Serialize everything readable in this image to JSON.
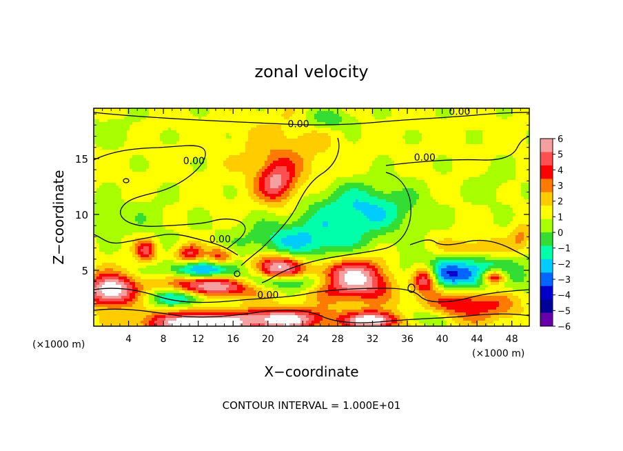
{
  "chart_data": {
    "type": "heatmap",
    "title": "zonal velocity",
    "xlabel": "X−coordinate",
    "ylabel": "Z−coordinate",
    "x_unit_left": "(×1000 m)",
    "x_unit_right": "(×1000 m)",
    "xlim": [
      0,
      50
    ],
    "ylim": [
      0,
      19.5
    ],
    "x_ticks": [
      4,
      8,
      12,
      16,
      20,
      24,
      28,
      32,
      36,
      40,
      44,
      48
    ],
    "y_ticks": [
      5,
      10,
      15
    ],
    "footer": "CONTOUR INTERVAL = 1.000E+01",
    "contour_labels": [
      {
        "text": "0.00",
        "x": 23.5,
        "y": 17.8
      },
      {
        "text": "0.00",
        "x": 42,
        "y": 18.9
      },
      {
        "text": "0.00",
        "x": 11.5,
        "y": 14.5
      },
      {
        "text": "0.00",
        "x": 38,
        "y": 14.8
      },
      {
        "text": "0.00",
        "x": 14.5,
        "y": 7.5
      },
      {
        "text": "0.00",
        "x": 20,
        "y": 2.5
      }
    ],
    "colorbar": {
      "levels": [
        6,
        5,
        4,
        3,
        2,
        1,
        0,
        -1,
        -2,
        -3,
        -4,
        -5,
        -6
      ],
      "labels": [
        "6",
        "5",
        "4",
        "3",
        "2",
        "1",
        "0",
        "−1",
        "−2",
        "−3",
        "−4",
        "−5",
        "−6"
      ],
      "colors": [
        "#f4a0a0",
        "#ff5050",
        "#ff0000",
        "#ff7a00",
        "#ffcc00",
        "#ffff00",
        "#a8ff00",
        "#33dd33",
        "#00ffaa",
        "#00ccff",
        "#0066ff",
        "#0000cc",
        "#000099",
        "#6600aa"
      ]
    },
    "features": [
      {
        "x": 21,
        "y": 12.8,
        "sx": 2.2,
        "sy": 1.8,
        "a": 4.5
      },
      {
        "x": 22,
        "y": 15.5,
        "sx": 5,
        "sy": 3,
        "a": 1.5
      },
      {
        "x": 31,
        "y": 10.5,
        "sx": 6,
        "sy": 2.2,
        "a": -3.5
      },
      {
        "x": 24,
        "y": 7.5,
        "sx": 7,
        "sy": 2,
        "a": -3.5
      },
      {
        "x": 27,
        "y": 18.5,
        "sx": 3,
        "sy": 0.9,
        "a": -2
      },
      {
        "x": 6,
        "y": 9.5,
        "sx": 4,
        "sy": 2,
        "a": -0.9
      },
      {
        "x": 1,
        "y": 10,
        "sx": 1.5,
        "sy": 1.5,
        "a": -1.5
      },
      {
        "x": 2,
        "y": 17.5,
        "sx": 3,
        "sy": 1.5,
        "a": -0.8
      },
      {
        "x": 46,
        "y": 12.5,
        "sx": 3,
        "sy": 2,
        "a": -0.8
      },
      {
        "x": 14,
        "y": 3.6,
        "sx": 5,
        "sy": 1,
        "a": 7
      },
      {
        "x": 30,
        "y": 4.2,
        "sx": 4.5,
        "sy": 1.8,
        "a": 7
      },
      {
        "x": 2,
        "y": 3.2,
        "sx": 3,
        "sy": 1.4,
        "a": 7
      },
      {
        "x": 12,
        "y": 0.3,
        "sx": 6,
        "sy": 1,
        "a": 7
      },
      {
        "x": 22,
        "y": 0.6,
        "sx": 5,
        "sy": 1,
        "a": 6
      },
      {
        "x": 32,
        "y": 0.5,
        "sx": 3,
        "sy": 0.8,
        "a": 7
      },
      {
        "x": 43,
        "y": 2,
        "sx": 5,
        "sy": 1.5,
        "a": 4
      },
      {
        "x": 6,
        "y": 6.8,
        "sx": 1.2,
        "sy": 1,
        "a": 4
      },
      {
        "x": 11,
        "y": 6.5,
        "sx": 1.5,
        "sy": 0.8,
        "a": 4
      },
      {
        "x": 14.5,
        "y": 6.3,
        "sx": 1.5,
        "sy": 0.8,
        "a": 3.5
      },
      {
        "x": 13,
        "y": 5,
        "sx": 5,
        "sy": 0.8,
        "a": -4.5
      },
      {
        "x": 10,
        "y": 2.6,
        "sx": 4,
        "sy": 0.8,
        "a": -4
      },
      {
        "x": 21,
        "y": 5.2,
        "sx": 3,
        "sy": 1.2,
        "a": 7
      },
      {
        "x": 21,
        "y": 4,
        "sx": 6,
        "sy": 0.8,
        "a": -4.5
      },
      {
        "x": 38,
        "y": 4.2,
        "sx": 1.5,
        "sy": 1.2,
        "a": 7
      },
      {
        "x": 46,
        "y": 4.4,
        "sx": 1.5,
        "sy": 0.7,
        "a": 7
      },
      {
        "x": 42,
        "y": 4.6,
        "sx": 7,
        "sy": 1.5,
        "a": -5.5
      },
      {
        "x": 44,
        "y": 7,
        "sx": 4,
        "sy": 0.8,
        "a": 2
      },
      {
        "x": 49,
        "y": 8,
        "sx": 1,
        "sy": 1,
        "a": 2
      },
      {
        "x": 38,
        "y": 0.8,
        "sx": 3,
        "sy": 0.8,
        "a": -2
      }
    ]
  }
}
